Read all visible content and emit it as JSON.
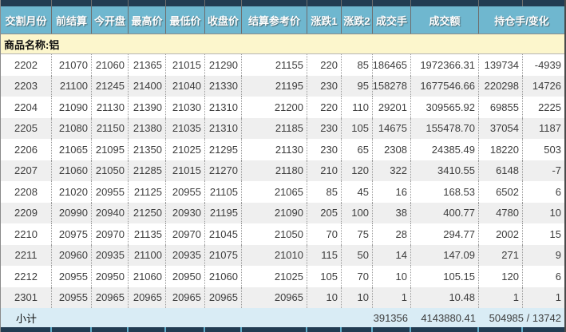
{
  "banner": {
    "label": "商品名称:铝"
  },
  "table": {
    "headers": [
      "交割月份",
      "前结算",
      "今开盘",
      "最高价",
      "最低价",
      "收盘价",
      "结算参考价",
      "涨跌1",
      "涨跌2",
      "成交手",
      "成交额",
      "持仓手/变化"
    ],
    "rows": [
      [
        "2202",
        "21070",
        "21060",
        "21365",
        "21015",
        "21290",
        "21155",
        "220",
        "85",
        "186465",
        "1972366.31",
        "139734",
        "-4939"
      ],
      [
        "2203",
        "21100",
        "21245",
        "21400",
        "21040",
        "21330",
        "21195",
        "230",
        "95",
        "158278",
        "1677546.66",
        "220298",
        "14726"
      ],
      [
        "2204",
        "21090",
        "21130",
        "21390",
        "21030",
        "21310",
        "21200",
        "220",
        "110",
        "29201",
        "309565.92",
        "69855",
        "2225"
      ],
      [
        "2205",
        "21080",
        "21150",
        "21380",
        "21035",
        "21310",
        "21185",
        "230",
        "105",
        "14675",
        "155478.70",
        "37054",
        "1187"
      ],
      [
        "2206",
        "21065",
        "21095",
        "21350",
        "21025",
        "21295",
        "21130",
        "230",
        "65",
        "2308",
        "24385.49",
        "18220",
        "503"
      ],
      [
        "2207",
        "21060",
        "21050",
        "21285",
        "21015",
        "21270",
        "21180",
        "210",
        "120",
        "322",
        "3410.55",
        "6148",
        "-7"
      ],
      [
        "2208",
        "21020",
        "20955",
        "21125",
        "20955",
        "21105",
        "21065",
        "85",
        "45",
        "16",
        "168.53",
        "6502",
        "6"
      ],
      [
        "2209",
        "20990",
        "20940",
        "21250",
        "20930",
        "21195",
        "21090",
        "205",
        "100",
        "38",
        "400.77",
        "4780",
        "10"
      ],
      [
        "2210",
        "20975",
        "20970",
        "21135",
        "20970",
        "21045",
        "21050",
        "70",
        "75",
        "28",
        "294.77",
        "2002",
        "15"
      ],
      [
        "2211",
        "20960",
        "20935",
        "21100",
        "20935",
        "21075",
        "21010",
        "115",
        "50",
        "14",
        "147.09",
        "271",
        "9"
      ],
      [
        "2212",
        "20955",
        "20950",
        "21060",
        "20950",
        "21060",
        "21025",
        "105",
        "70",
        "10",
        "105.15",
        "120",
        "6"
      ],
      [
        "2301",
        "20955",
        "20965",
        "20965",
        "20965",
        "20965",
        "20965",
        "10",
        "10",
        "1",
        "10.48",
        "1",
        "1"
      ]
    ],
    "subtotal": {
      "label": "小计",
      "volume": "391356",
      "turnover": "4143880.41",
      "oi_change": "504985 / 13742"
    }
  },
  "colors": {
    "header_bg": "#6FB7CF",
    "header_top_strip": "#223C52",
    "banner_bg": "#FCF6CC",
    "row_alt_bg": "#EFEFEF",
    "subtotal_bg": "#D9ECF5"
  }
}
